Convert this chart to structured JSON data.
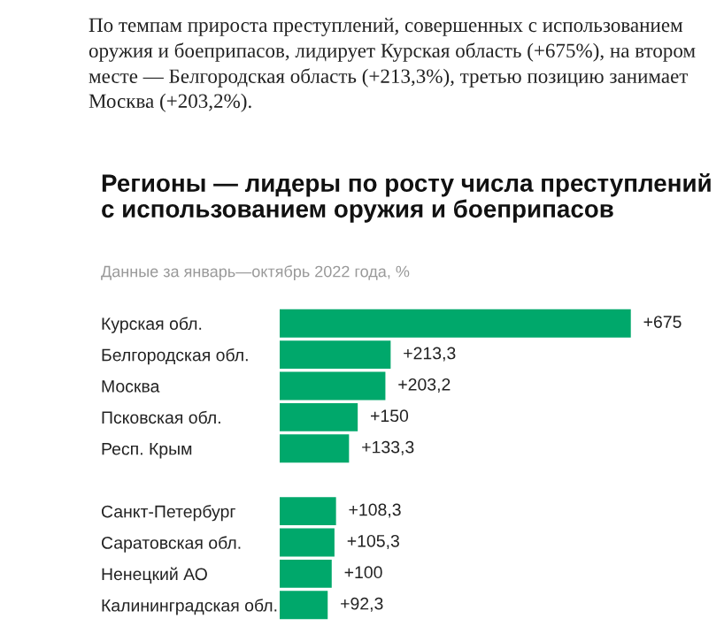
{
  "chart_data": {
    "type": "bar",
    "orientation": "horizontal",
    "title": "Регионы — лидеры по росту числа преступлений с использованием оружия и боеприпасов",
    "subtitle": "Данные за январь—октябрь 2022 года, %",
    "annotations": [
      "По темпам прироста преступлений, совершенных с использованием оружия и боеприпасов, лидирует Курская область (+675%), на втором месте — Белгородская область (+213,3%), третью позицию занимает Москва (+203,2%)."
    ],
    "categories": [
      "Курская обл.",
      "Белгородская обл.",
      "Москва",
      "Псковская обл.",
      "Респ. Крым",
      null,
      "Санкт-Петербург",
      "Саратовская обл.",
      "Ненецкий АО",
      "Калининградская обл."
    ],
    "values": [
      675,
      213.3,
      203.2,
      150,
      133.3,
      null,
      108.3,
      105.3,
      100,
      92.3
    ],
    "value_labels": [
      "+675",
      "+213,3",
      "+203,2",
      "+150",
      "+133,3",
      null,
      "+108,3",
      "+105,3",
      "+100",
      "+92,3"
    ],
    "color": "#00a86b",
    "grid": false,
    "legend": false
  }
}
